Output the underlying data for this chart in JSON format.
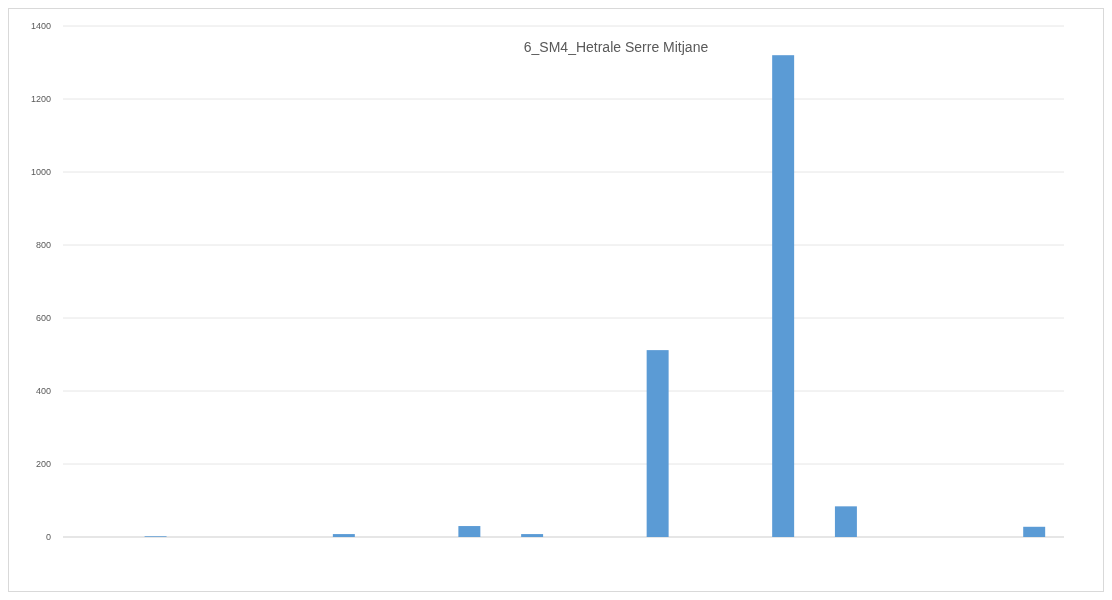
{
  "chart_data": {
    "type": "bar",
    "title": "6_SM4_Hetrale Serre Mitjane",
    "categories": [
      null,
      null,
      null,
      null,
      null,
      null,
      null,
      null,
      null,
      null,
      null,
      null,
      null,
      null,
      null,
      null
    ],
    "values": [
      0,
      2,
      0,
      0,
      8,
      0,
      30,
      8,
      0,
      512,
      0,
      1320,
      84,
      0,
      0,
      28
    ],
    "color": "#5b9bd5",
    "ylim": [
      0,
      1400
    ],
    "yticks": [
      0,
      200,
      400,
      600,
      800,
      1000,
      1200,
      1400
    ],
    "grid": true
  }
}
